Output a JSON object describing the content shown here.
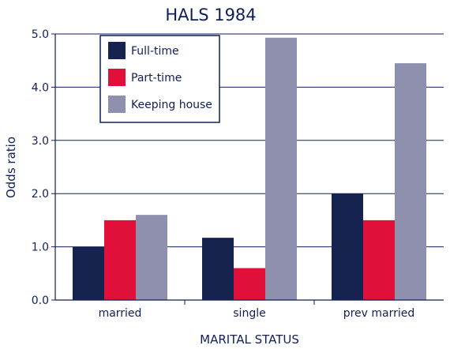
{
  "chart_data": {
    "type": "bar",
    "title": "HALS 1984",
    "xlabel": "MARITAL STATUS",
    "ylabel": "Odds ratio",
    "categories": [
      "married",
      "single",
      "prev married"
    ],
    "series": [
      {
        "name": "Full-time",
        "values": [
          1.0,
          1.17,
          2.0
        ],
        "color": "#16234f"
      },
      {
        "name": "Part-time",
        "values": [
          1.5,
          0.6,
          1.5
        ],
        "color": "#e0103a"
      },
      {
        "name": "Keeping house",
        "values": [
          1.6,
          4.93,
          4.45
        ],
        "color": "#8f90ae"
      }
    ],
    "ylim": [
      0,
      5
    ],
    "yticks": [
      "0.0",
      "1.0",
      "2.0",
      "3.0",
      "4.0",
      "5.0"
    ],
    "grid": "horizontal",
    "legend": "top-left",
    "axis_color": "#0f1f5a"
  }
}
